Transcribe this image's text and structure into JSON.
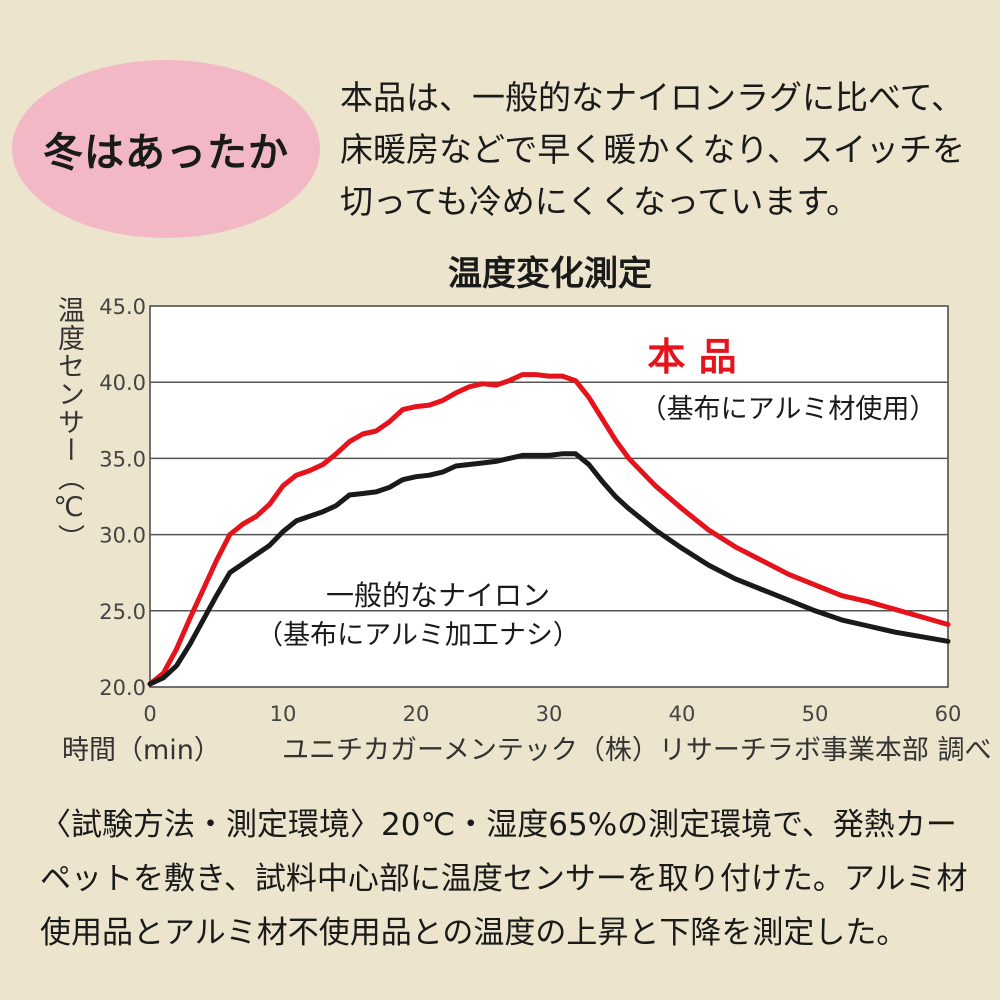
{
  "badge": {
    "text": "冬はあったか"
  },
  "intro": {
    "text": "本品は、一般的なナイロンラグに比べて、床暖房などで早く暖かくなり、スイッチを切っても冷めにくくなっています。"
  },
  "axis": {
    "ylabel": "温度センサー（℃）",
    "xlabel": "時間（min）"
  },
  "credit": "ユニチカガーメンテック（株）リサーチラボ事業本部 調べ",
  "method": {
    "text": "〈試験方法・測定環境〉20℃・湿度65%の測定環境で、発熱カーペットを敷き、試料中心部に温度センサーを取り付けた。アルミ材使用品とアルミ材不使用品との温度の上昇と下降を測定した。"
  },
  "colors": {
    "product": "#e5131b",
    "nylon": "#1a1a1a",
    "grid": "#555555",
    "badge": "#f2b8c6",
    "background": "#ece4cc"
  },
  "chart_data": {
    "type": "line",
    "title": "温度変化測定",
    "xlabel": "時間（min）",
    "ylabel": "温度センサー（℃）",
    "xlim": [
      0,
      60
    ],
    "ylim": [
      20,
      45
    ],
    "xticks": [
      "0",
      "10",
      "20",
      "30",
      "40",
      "50",
      "60"
    ],
    "yticks": [
      "20.0",
      "25.0",
      "30.0",
      "35.0",
      "40.0",
      "45.0"
    ],
    "grid": "horizontal",
    "series": [
      {
        "name": "本 品",
        "sublabel": "（基布にアルミ材使用）",
        "color": "#e5131b",
        "x": [
          0,
          1,
          2,
          3,
          4,
          5,
          6,
          7,
          8,
          9,
          10,
          11,
          12,
          13,
          14,
          15,
          16,
          17,
          18,
          19,
          20,
          21,
          22,
          23,
          24,
          25,
          26,
          27,
          28,
          29,
          30,
          31,
          32,
          33,
          34,
          35,
          36,
          38,
          40,
          42,
          44,
          46,
          48,
          50,
          52,
          54,
          56,
          58,
          60
        ],
        "y": [
          20.2,
          20.9,
          22.5,
          24.5,
          26.4,
          28.3,
          30.0,
          30.7,
          31.2,
          32.0,
          33.2,
          33.9,
          34.2,
          34.6,
          35.3,
          36.1,
          36.6,
          36.8,
          37.4,
          38.2,
          38.4,
          38.5,
          38.8,
          39.3,
          39.7,
          39.9,
          39.8,
          40.1,
          40.5,
          40.5,
          40.4,
          40.4,
          40.1,
          39.0,
          37.6,
          36.2,
          35.0,
          33.2,
          31.7,
          30.3,
          29.2,
          28.3,
          27.4,
          26.7,
          26.0,
          25.6,
          25.1,
          24.6,
          24.1
        ]
      },
      {
        "name": "一般的なナイロン",
        "sublabel": "（基布にアルミ加工ナシ）",
        "color": "#1a1a1a",
        "x": [
          0,
          1,
          2,
          3,
          4,
          5,
          6,
          7,
          8,
          9,
          10,
          11,
          12,
          13,
          14,
          15,
          16,
          17,
          18,
          19,
          20,
          21,
          22,
          23,
          24,
          25,
          26,
          27,
          28,
          29,
          30,
          31,
          32,
          33,
          34,
          35,
          36,
          38,
          40,
          42,
          44,
          46,
          48,
          50,
          52,
          54,
          56,
          58,
          60
        ],
        "y": [
          20.2,
          20.6,
          21.4,
          22.8,
          24.4,
          26.0,
          27.5,
          28.1,
          28.7,
          29.3,
          30.2,
          30.9,
          31.2,
          31.5,
          31.9,
          32.6,
          32.7,
          32.8,
          33.1,
          33.6,
          33.8,
          33.9,
          34.1,
          34.5,
          34.6,
          34.7,
          34.8,
          35.0,
          35.2,
          35.2,
          35.2,
          35.3,
          35.3,
          34.6,
          33.5,
          32.5,
          31.7,
          30.3,
          29.1,
          28.0,
          27.1,
          26.4,
          25.7,
          25.0,
          24.4,
          24.0,
          23.6,
          23.3,
          23.0
        ]
      }
    ]
  }
}
